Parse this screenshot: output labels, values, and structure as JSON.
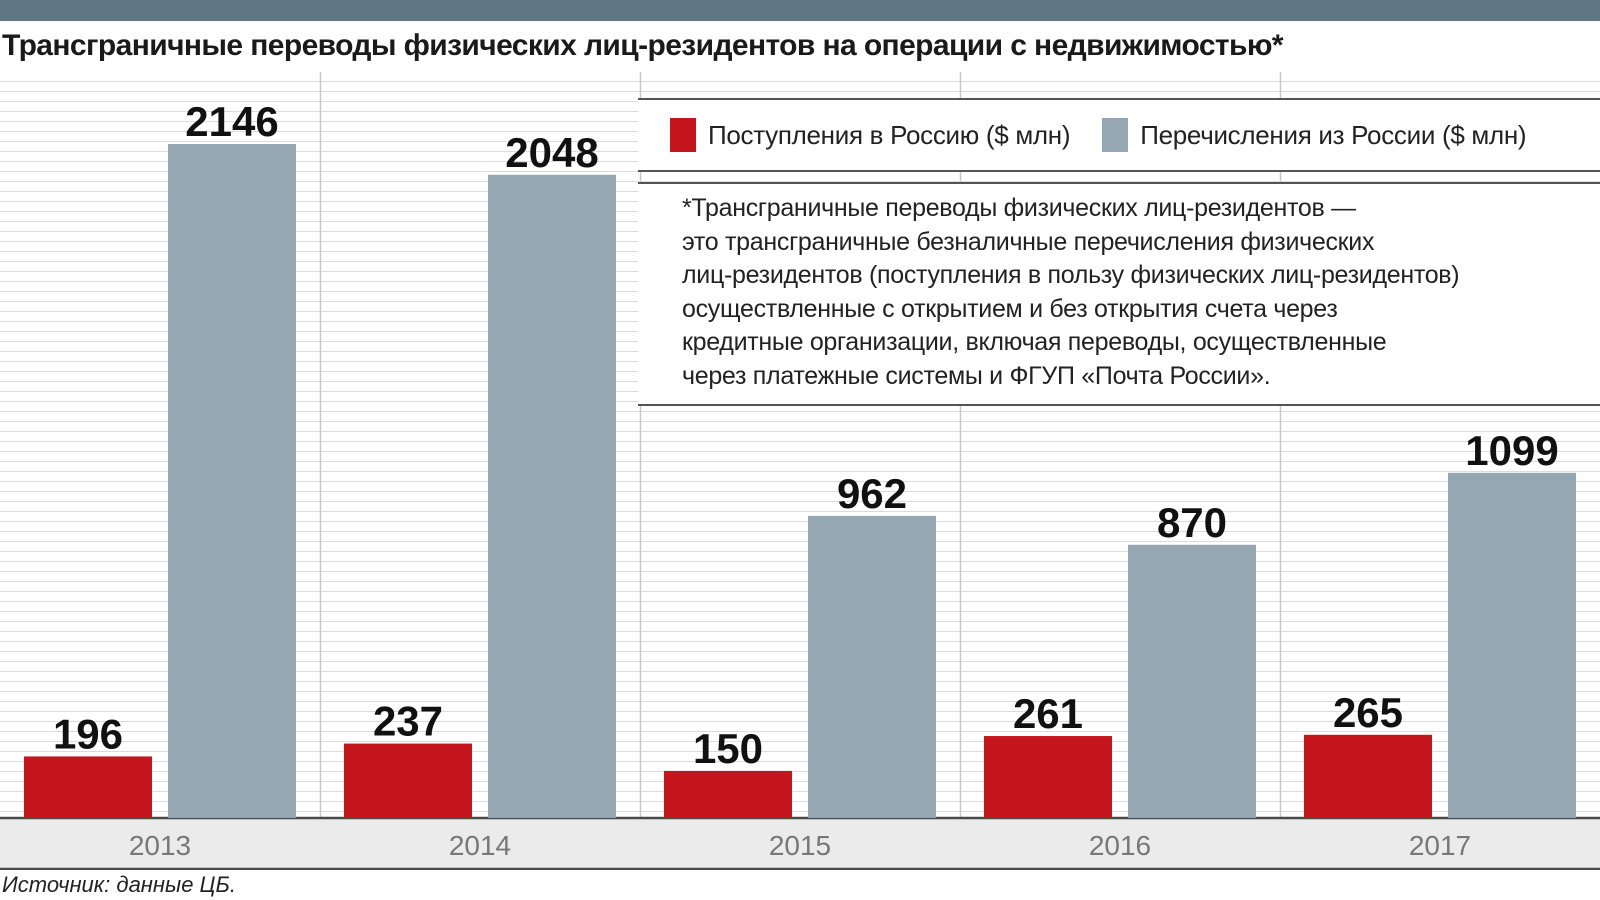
{
  "title": "Трансграничные переводы физических лиц-резидентов на операции с недвижимостью*",
  "colors": {
    "inflow": "#c4161c",
    "outflow": "#94a7b3",
    "band": "#5f7785",
    "grid": "#dcdcdc"
  },
  "legend": [
    {
      "label": "Поступления в Россию ($ млн)",
      "color": "#c4161c"
    },
    {
      "label": "Перечисления из России ($ млн)",
      "color": "#94a7b3"
    }
  ],
  "footnote": [
    "*Трансграничные переводы физических лиц-резидентов —",
    "это трансграничные безналичные перечисления физических",
    "лиц-резидентов (поступления в пользу физических лиц-резидентов)",
    "осуществленные с открытием и без открытия счета через",
    "кредитные организации, включая переводы, осуществленные",
    "через платежные системы и ФГУП «Почта России»."
  ],
  "source": "Источник: данные ЦБ.",
  "chart_data": {
    "type": "bar",
    "categories": [
      "2013",
      "2014",
      "2015",
      "2016",
      "2017"
    ],
    "series": [
      {
        "name": "Поступления в Россию ($ млн)",
        "values": [
          196,
          237,
          150,
          261,
          265
        ]
      },
      {
        "name": "Перечисления из России ($ млн)",
        "values": [
          2146,
          2048,
          962,
          870,
          1099
        ]
      }
    ],
    "ylim": [
      0,
      2146
    ],
    "grid": true,
    "legend_position": "top-right"
  }
}
